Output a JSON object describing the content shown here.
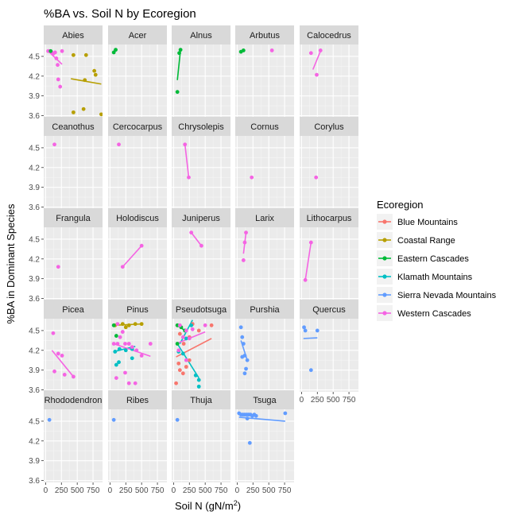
{
  "chart_data": {
    "type": "scatter",
    "title": "%BA vs. Soil N by Ecoregion",
    "xlabel": "Soil N (gN/m",
    "xlabel_sup": "2",
    "xlabel_end": ")",
    "ylabel": "%BA in Dominant Species",
    "xlim": [
      -30,
      900
    ],
    "ylim": [
      3.57,
      4.68
    ],
    "x_ticks": [
      0,
      250,
      500,
      750
    ],
    "x_tick_labels": [
      "0",
      "250",
      "500",
      "750"
    ],
    "y_ticks": [
      3.6,
      3.9,
      4.2,
      4.5
    ],
    "y_tick_labels": [
      "3.6",
      "3.9",
      "4.2",
      "4.5"
    ],
    "grid": true,
    "legend": {
      "title": "Ecoregion",
      "position": "right",
      "entries": [
        {
          "name": "Blue Mountains",
          "color": "#F8766D"
        },
        {
          "name": "Coastal Range",
          "color": "#B79F00"
        },
        {
          "name": "Eastern Cascades",
          "color": "#00BA38"
        },
        {
          "name": "Klamath Mountains",
          "color": "#00BFC4"
        },
        {
          "name": "Sierra Nevada Mountains",
          "color": "#619CFF"
        },
        {
          "name": "Western Cascades",
          "color": "#F564E3"
        }
      ]
    },
    "facets": [
      {
        "name": "Abies",
        "points": [
          [
            40,
            4.58,
            5
          ],
          [
            60,
            4.58,
            5
          ],
          [
            90,
            4.57,
            5
          ],
          [
            120,
            4.54,
            5
          ],
          [
            150,
            4.56,
            5
          ],
          [
            170,
            4.47,
            5
          ],
          [
            190,
            4.37,
            5
          ],
          [
            200,
            4.15,
            5
          ],
          [
            230,
            4.04,
            5
          ],
          [
            260,
            4.58,
            5
          ],
          [
            80,
            4.58,
            2
          ],
          [
            440,
            4.52,
            1
          ],
          [
            640,
            4.52,
            1
          ],
          [
            770,
            4.28,
            1
          ],
          [
            790,
            4.22,
            1
          ],
          [
            620,
            4.14,
            1
          ],
          [
            440,
            3.65,
            1
          ],
          [
            600,
            3.7,
            1
          ],
          [
            880,
            3.62,
            1
          ]
        ],
        "lines": [
          {
            "eco": 5,
            "x1": 40,
            "y1": 4.58,
            "x2": 260,
            "y2": 4.38
          },
          {
            "eco": 1,
            "x1": 400,
            "y1": 4.16,
            "x2": 880,
            "y2": 4.08
          }
        ]
      },
      {
        "name": "Acer",
        "points": [
          [
            60,
            4.56,
            2
          ],
          [
            90,
            4.6,
            2
          ]
        ],
        "lines": []
      },
      {
        "name": "Alnus",
        "points": [
          [
            60,
            3.96,
            2
          ],
          [
            90,
            4.55,
            2
          ],
          [
            110,
            4.6,
            2
          ]
        ],
        "lines": [
          {
            "eco": 2,
            "x1": 60,
            "y1": 4.14,
            "x2": 110,
            "y2": 4.6
          }
        ]
      },
      {
        "name": "Arbutus",
        "points": [
          [
            60,
            4.57,
            2
          ],
          [
            100,
            4.59,
            2
          ],
          [
            550,
            4.59,
            5
          ]
        ],
        "lines": []
      },
      {
        "name": "Calocedrus",
        "points": [
          [
            150,
            4.55,
            5
          ],
          [
            240,
            4.22,
            5
          ],
          [
            300,
            4.59,
            5
          ]
        ],
        "lines": [
          {
            "eco": 5,
            "x1": 180,
            "y1": 4.3,
            "x2": 300,
            "y2": 4.58
          }
        ]
      },
      {
        "name": "Ceanothus",
        "points": [
          [
            140,
            4.55,
            5
          ]
        ],
        "lines": []
      },
      {
        "name": "Cercocarpus",
        "points": [
          [
            140,
            4.55,
            5
          ]
        ],
        "lines": []
      },
      {
        "name": "Chrysolepis",
        "points": [
          [
            180,
            4.55,
            5
          ],
          [
            240,
            4.05,
            5
          ]
        ],
        "lines": [
          {
            "eco": 5,
            "x1": 180,
            "y1": 4.55,
            "x2": 240,
            "y2": 4.05
          }
        ]
      },
      {
        "name": "Cornus",
        "points": [
          [
            230,
            4.05,
            5
          ]
        ],
        "lines": []
      },
      {
        "name": "Corylus",
        "points": [
          [
            230,
            4.05,
            5
          ]
        ],
        "lines": []
      },
      {
        "name": "Frangula",
        "points": [
          [
            200,
            4.08,
            5
          ]
        ],
        "lines": []
      },
      {
        "name": "Holodiscus",
        "points": [
          [
            200,
            4.08,
            5
          ],
          [
            500,
            4.4,
            5
          ]
        ],
        "lines": [
          {
            "eco": 5,
            "x1": 200,
            "y1": 4.08,
            "x2": 500,
            "y2": 4.4
          }
        ]
      },
      {
        "name": "Juniperus",
        "points": [
          [
            280,
            4.6,
            5
          ],
          [
            440,
            4.4,
            5
          ]
        ],
        "lines": [
          {
            "eco": 5,
            "x1": 280,
            "y1": 4.6,
            "x2": 440,
            "y2": 4.4
          }
        ]
      },
      {
        "name": "Larix",
        "points": [
          [
            100,
            4.18,
            5
          ],
          [
            120,
            4.45,
            5
          ],
          [
            140,
            4.6,
            5
          ]
        ],
        "lines": [
          {
            "eco": 5,
            "x1": 100,
            "y1": 4.28,
            "x2": 140,
            "y2": 4.6
          }
        ]
      },
      {
        "name": "Lithocarpus",
        "points": [
          [
            60,
            3.88,
            5
          ],
          [
            150,
            4.45,
            5
          ]
        ],
        "lines": [
          {
            "eco": 5,
            "x1": 60,
            "y1": 3.88,
            "x2": 150,
            "y2": 4.45
          }
        ]
      },
      {
        "name": "Picea",
        "points": [
          [
            120,
            4.46,
            5
          ],
          [
            140,
            3.88,
            5
          ],
          [
            200,
            4.15,
            5
          ],
          [
            260,
            4.12,
            5
          ],
          [
            300,
            3.83,
            5
          ],
          [
            440,
            3.8,
            5
          ]
        ],
        "lines": [
          {
            "eco": 5,
            "x1": 100,
            "y1": 4.2,
            "x2": 440,
            "y2": 3.8
          }
        ]
      },
      {
        "name": "Pinus",
        "points": [
          [
            80,
            4.58,
            1
          ],
          [
            200,
            4.6,
            1
          ],
          [
            300,
            4.58,
            1
          ],
          [
            400,
            4.6,
            1
          ],
          [
            500,
            4.6,
            1
          ],
          [
            250,
            4.55,
            1
          ],
          [
            60,
            4.58,
            2
          ],
          [
            100,
            4.42,
            2
          ],
          [
            80,
            4.18,
            3
          ],
          [
            150,
            4.22,
            3
          ],
          [
            250,
            4.2,
            3
          ],
          [
            350,
            4.22,
            3
          ],
          [
            100,
            3.98,
            3
          ],
          [
            140,
            4.02,
            3
          ],
          [
            350,
            4.08,
            3
          ],
          [
            120,
            4.6,
            5
          ],
          [
            160,
            4.4,
            5
          ],
          [
            200,
            4.48,
            5
          ],
          [
            240,
            4.3,
            5
          ],
          [
            300,
            4.3,
            5
          ],
          [
            350,
            4.25,
            5
          ],
          [
            420,
            4.2,
            5
          ],
          [
            500,
            4.12,
            5
          ],
          [
            640,
            4.3,
            5
          ],
          [
            100,
            3.78,
            5
          ],
          [
            240,
            3.86,
            5
          ],
          [
            300,
            3.7,
            5
          ],
          [
            400,
            3.7,
            5
          ],
          [
            60,
            4.3,
            5
          ],
          [
            120,
            4.3,
            5
          ]
        ],
        "lines": [
          {
            "eco": 1,
            "x1": 60,
            "y1": 4.58,
            "x2": 500,
            "y2": 4.6
          },
          {
            "eco": 3,
            "x1": 60,
            "y1": 4.18,
            "x2": 400,
            "y2": 4.26
          },
          {
            "eco": 5,
            "x1": 60,
            "y1": 4.3,
            "x2": 640,
            "y2": 4.11
          }
        ]
      },
      {
        "name": "Pseudotsuga",
        "points": [
          [
            60,
            4.58,
            0
          ],
          [
            100,
            4.45,
            0
          ],
          [
            160,
            4.3,
            0
          ],
          [
            250,
            4.4,
            0
          ],
          [
            80,
            4.0,
            0
          ],
          [
            100,
            3.9,
            0
          ],
          [
            150,
            3.85,
            0
          ],
          [
            200,
            3.95,
            0
          ],
          [
            250,
            4.05,
            0
          ],
          [
            400,
            4.5,
            0
          ],
          [
            600,
            4.58,
            0
          ],
          [
            40,
            3.7,
            0
          ],
          [
            300,
            4.6,
            0
          ],
          [
            60,
            4.58,
            2
          ],
          [
            120,
            4.55,
            2
          ],
          [
            180,
            4.5,
            2
          ],
          [
            60,
            4.3,
            2
          ],
          [
            80,
            4.18,
            3
          ],
          [
            150,
            4.15,
            3
          ],
          [
            200,
            4.38,
            3
          ],
          [
            280,
            4.58,
            3
          ],
          [
            350,
            3.82,
            3
          ],
          [
            400,
            3.75,
            3
          ],
          [
            400,
            3.65,
            3
          ],
          [
            100,
            4.58,
            5
          ],
          [
            200,
            4.5,
            5
          ],
          [
            300,
            4.52,
            5
          ],
          [
            500,
            4.58,
            5
          ],
          [
            250,
            4.38,
            5
          ],
          [
            150,
            4.4,
            5
          ],
          [
            80,
            4.2,
            5
          ],
          [
            200,
            4.05,
            5
          ]
        ],
        "lines": [
          {
            "eco": 0,
            "x1": 40,
            "y1": 4.1,
            "x2": 600,
            "y2": 4.38
          },
          {
            "eco": 3,
            "x1": 60,
            "y1": 4.3,
            "x2": 400,
            "y2": 3.78
          },
          {
            "eco": 3,
            "x1": 100,
            "y1": 4.3,
            "x2": 300,
            "y2": 4.66
          },
          {
            "eco": 5,
            "x1": 40,
            "y1": 4.3,
            "x2": 500,
            "y2": 4.48
          },
          {
            "eco": 2,
            "x1": 60,
            "y1": 4.58,
            "x2": 180,
            "y2": 4.5
          }
        ]
      },
      {
        "name": "Purshia",
        "points": [
          [
            60,
            4.55,
            4
          ],
          [
            80,
            4.4,
            4
          ],
          [
            100,
            4.3,
            4
          ],
          [
            120,
            4.12,
            4
          ],
          [
            160,
            4.05,
            4
          ],
          [
            140,
            3.92,
            4
          ],
          [
            120,
            3.85,
            4
          ],
          [
            80,
            4.1,
            4
          ]
        ],
        "lines": [
          {
            "eco": 4,
            "x1": 60,
            "y1": 4.35,
            "x2": 160,
            "y2": 4.05
          }
        ]
      },
      {
        "name": "Quercus",
        "points": [
          [
            40,
            4.55,
            4
          ],
          [
            60,
            4.5,
            4
          ],
          [
            150,
            3.9,
            4
          ],
          [
            250,
            4.5,
            4
          ]
        ],
        "lines": [
          {
            "eco": 4,
            "x1": 30,
            "y1": 4.38,
            "x2": 250,
            "y2": 4.39
          }
        ]
      },
      {
        "name": "Rhododendron",
        "points": [
          [
            60,
            4.52,
            4
          ]
        ],
        "lines": []
      },
      {
        "name": "Ribes",
        "points": [
          [
            60,
            4.52,
            4
          ]
        ],
        "lines": []
      },
      {
        "name": "Thuja",
        "points": [
          [
            60,
            4.52,
            4
          ]
        ],
        "lines": []
      },
      {
        "name": "Tsuga",
        "points": [
          [
            30,
            4.62,
            4
          ],
          [
            60,
            4.6,
            4
          ],
          [
            90,
            4.6,
            4
          ],
          [
            120,
            4.6,
            4
          ],
          [
            150,
            4.6,
            4
          ],
          [
            180,
            4.6,
            4
          ],
          [
            210,
            4.6,
            4
          ],
          [
            240,
            4.58,
            4
          ],
          [
            270,
            4.6,
            4
          ],
          [
            300,
            4.58,
            4
          ],
          [
            160,
            4.54,
            4
          ],
          [
            200,
            4.17,
            4
          ],
          [
            760,
            4.62,
            4
          ]
        ],
        "lines": [
          {
            "eco": 4,
            "x1": 30,
            "y1": 4.56,
            "x2": 760,
            "y2": 4.5
          }
        ]
      }
    ]
  }
}
